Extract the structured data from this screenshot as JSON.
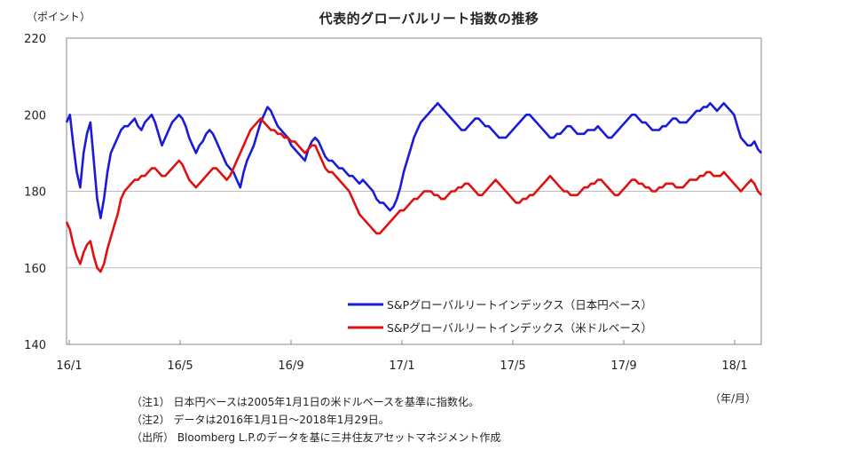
{
  "chart_data": {
    "type": "line",
    "title": "代表的グローバルリート指数の推移",
    "ylabel": "（ポイント）",
    "xlabel": "（年/月）",
    "ylim": [
      140,
      220
    ],
    "yticks": [
      140,
      160,
      180,
      200,
      220
    ],
    "xticks": [
      "16/1",
      "16/5",
      "16/9",
      "17/1",
      "17/5",
      "17/9",
      "18/1"
    ],
    "x_range": [
      "2016-01-01",
      "2018-01-29"
    ],
    "grid": true,
    "legend_position": "bottom-right",
    "series": [
      {
        "name": "S&Pグローバルリートインデックス（日本円ベース）",
        "color": "#1a1ad9",
        "values": [
          198,
          200,
          192,
          185,
          181,
          190,
          195,
          198,
          188,
          178,
          173,
          178,
          185,
          190,
          192,
          194,
          196,
          197,
          197,
          198,
          199,
          197,
          196,
          198,
          199,
          200,
          198,
          195,
          192,
          194,
          196,
          198,
          199,
          200,
          199,
          197,
          194,
          192,
          190,
          192,
          193,
          195,
          196,
          195,
          193,
          191,
          189,
          187,
          186,
          185,
          183,
          181,
          185,
          188,
          190,
          192,
          195,
          198,
          200,
          202,
          201,
          199,
          197,
          196,
          195,
          194,
          192,
          191,
          190,
          189,
          188,
          191,
          193,
          194,
          193,
          191,
          189,
          188,
          188,
          187,
          186,
          186,
          185,
          184,
          184,
          183,
          182,
          183,
          182,
          181,
          180,
          178,
          177,
          177,
          176,
          175,
          176,
          178,
          181,
          185,
          188,
          191,
          194,
          196,
          198,
          199,
          200,
          201,
          202,
          203,
          202,
          201,
          200,
          199,
          198,
          197,
          196,
          196,
          197,
          198,
          199,
          199,
          198,
          197,
          197,
          196,
          195,
          194,
          194,
          194,
          195,
          196,
          197,
          198,
          199,
          200,
          200,
          199,
          198,
          197,
          196,
          195,
          194,
          194,
          195,
          195,
          196,
          197,
          197,
          196,
          195,
          195,
          195,
          196,
          196,
          196,
          197,
          196,
          195,
          194,
          194,
          195,
          196,
          197,
          198,
          199,
          200,
          200,
          199,
          198,
          198,
          197,
          196,
          196,
          196,
          197,
          197,
          198,
          199,
          199,
          198,
          198,
          198,
          199,
          200,
          201,
          201,
          202,
          202,
          203,
          202,
          201,
          202,
          203,
          202,
          201,
          200,
          197,
          194,
          193,
          192,
          192,
          193,
          191,
          190
        ],
        "first_value": 198,
        "last_value": 190
      },
      {
        "name": "S&Pグローバルリートインデックス（米ドルベース）",
        "color": "#e01010",
        "values": [
          172,
          170,
          166,
          163,
          161,
          164,
          166,
          167,
          163,
          160,
          159,
          161,
          165,
          168,
          171,
          174,
          178,
          180,
          181,
          182,
          183,
          183,
          184,
          184,
          185,
          186,
          186,
          185,
          184,
          184,
          185,
          186,
          187,
          188,
          187,
          185,
          183,
          182,
          181,
          182,
          183,
          184,
          185,
          186,
          186,
          185,
          184,
          183,
          184,
          186,
          188,
          190,
          192,
          194,
          196,
          197,
          198,
          199,
          198,
          197,
          196,
          196,
          195,
          195,
          194,
          194,
          193,
          193,
          192,
          191,
          190,
          191,
          192,
          192,
          190,
          188,
          186,
          185,
          185,
          184,
          183,
          182,
          181,
          180,
          178,
          176,
          174,
          173,
          172,
          171,
          170,
          169,
          169,
          170,
          171,
          172,
          173,
          174,
          175,
          175,
          176,
          177,
          178,
          178,
          179,
          180,
          180,
          180,
          179,
          179,
          178,
          178,
          179,
          180,
          180,
          181,
          181,
          182,
          182,
          181,
          180,
          179,
          179,
          180,
          181,
          182,
          183,
          182,
          181,
          180,
          179,
          178,
          177,
          177,
          178,
          178,
          179,
          179,
          180,
          181,
          182,
          183,
          184,
          183,
          182,
          181,
          180,
          180,
          179,
          179,
          179,
          180,
          181,
          181,
          182,
          182,
          183,
          183,
          182,
          181,
          180,
          179,
          179,
          180,
          181,
          182,
          183,
          183,
          182,
          182,
          181,
          181,
          180,
          180,
          181,
          181,
          182,
          182,
          182,
          181,
          181,
          181,
          182,
          183,
          183,
          183,
          184,
          184,
          185,
          185,
          184,
          184,
          184,
          185,
          184,
          183,
          182,
          181,
          180,
          181,
          182,
          183,
          182,
          180,
          179
        ],
        "first_value": 172,
        "last_value": 179
      }
    ]
  },
  "notes": [
    "（注1） 日本円ベースは2005年1月1日の米ドルベースを基準に指数化。",
    "（注2） データは2016年1月1日～2018年1月29日。",
    "（出所） Bloomberg L.P.のデータを基に三井住友アセットマネジメント作成"
  ]
}
